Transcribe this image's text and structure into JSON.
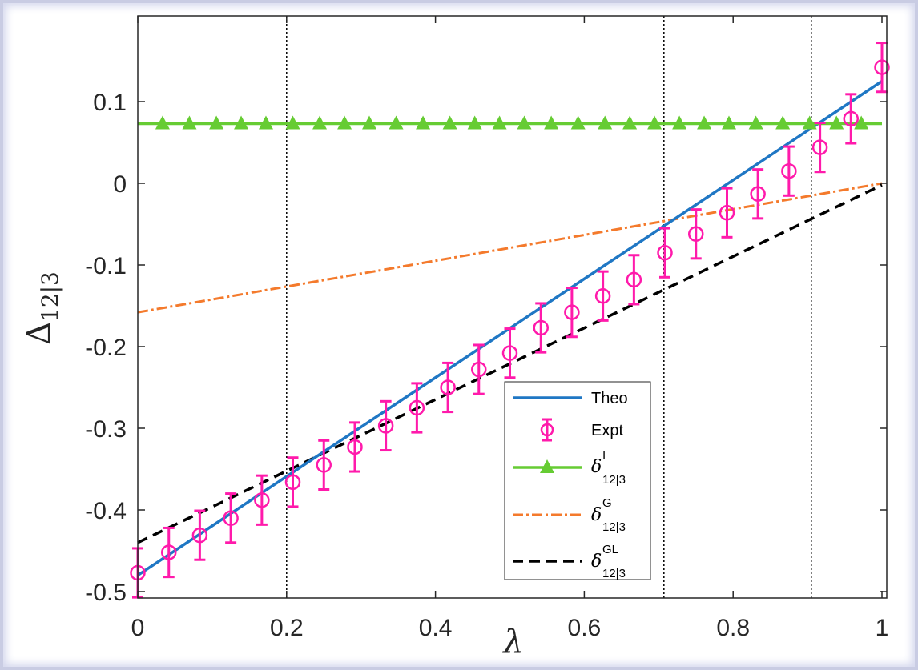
{
  "chart_data": {
    "type": "line",
    "xlabel": "λ",
    "ylabel_main": "Δ",
    "ylabel_sub": "12|3",
    "xlim": [
      0,
      1
    ],
    "ylim": [
      -0.5,
      0.2
    ],
    "x_ticks": [
      0,
      0.2,
      0.4,
      0.6,
      0.8,
      1
    ],
    "x_tick_labels": [
      "0",
      "0.2",
      "0.4",
      "0.6",
      "0.8",
      "1"
    ],
    "y_ticks": [
      -0.5,
      -0.4,
      -0.3,
      -0.2,
      -0.1,
      0,
      0.1
    ],
    "y_tick_labels": [
      "-0.5",
      "-0.4",
      "-0.3",
      "-0.2",
      "-0.1",
      "0",
      "0.1"
    ],
    "vertical_lines": [
      0.2,
      0.707,
      0.905
    ],
    "grid": false,
    "legend_position": "bottom-center",
    "series": [
      {
        "name": "Theo",
        "style": "solid",
        "color": "#1f77c4",
        "x": [
          0,
          1
        ],
        "y": [
          -0.48,
          0.125
        ]
      },
      {
        "name": "Expt",
        "style": "errorbar",
        "color": "#ff1aab",
        "x": [
          0,
          0.0417,
          0.0833,
          0.125,
          0.1667,
          0.2083,
          0.25,
          0.2917,
          0.3333,
          0.375,
          0.4167,
          0.4583,
          0.5,
          0.5417,
          0.5833,
          0.625,
          0.6667,
          0.7083,
          0.75,
          0.7917,
          0.8333,
          0.875,
          0.9167,
          0.9583,
          1
        ],
        "y": [
          -0.477,
          -0.452,
          -0.431,
          -0.41,
          -0.388,
          -0.366,
          -0.345,
          -0.323,
          -0.297,
          -0.275,
          -0.25,
          -0.228,
          -0.208,
          -0.177,
          -0.158,
          -0.138,
          -0.118,
          -0.085,
          -0.062,
          -0.036,
          -0.013,
          0.015,
          0.044,
          0.079,
          0.142
        ],
        "error": 0.03
      },
      {
        "name": "δ",
        "sub": "12|3",
        "sup": "I",
        "style": "solid-triangles",
        "color": "#66cc33",
        "x": [
          0,
          1
        ],
        "y": [
          0.073,
          0.073
        ],
        "marker_x": [
          0.0333,
          0.0694,
          0.1056,
          0.1389,
          0.1722,
          0.2083,
          0.2444,
          0.2778,
          0.3111,
          0.3472,
          0.3833,
          0.4194,
          0.4528,
          0.4861,
          0.5194,
          0.5556,
          0.5917,
          0.6278,
          0.6611,
          0.6944,
          0.7278,
          0.7611,
          0.7944,
          0.8306,
          0.8667,
          0.9028,
          0.9389,
          0.9722
        ]
      },
      {
        "name": "δ",
        "sub": "12|3",
        "sup": "G",
        "style": "dashdot",
        "color": "#f47a2c",
        "x": [
          0,
          1
        ],
        "y": [
          -0.158,
          0
        ]
      },
      {
        "name": "δ",
        "sub": "12|3",
        "sup": "GL",
        "style": "dashed",
        "color": "#000000",
        "x": [
          0,
          1
        ],
        "y": [
          -0.44,
          -0.002
        ]
      }
    ]
  }
}
